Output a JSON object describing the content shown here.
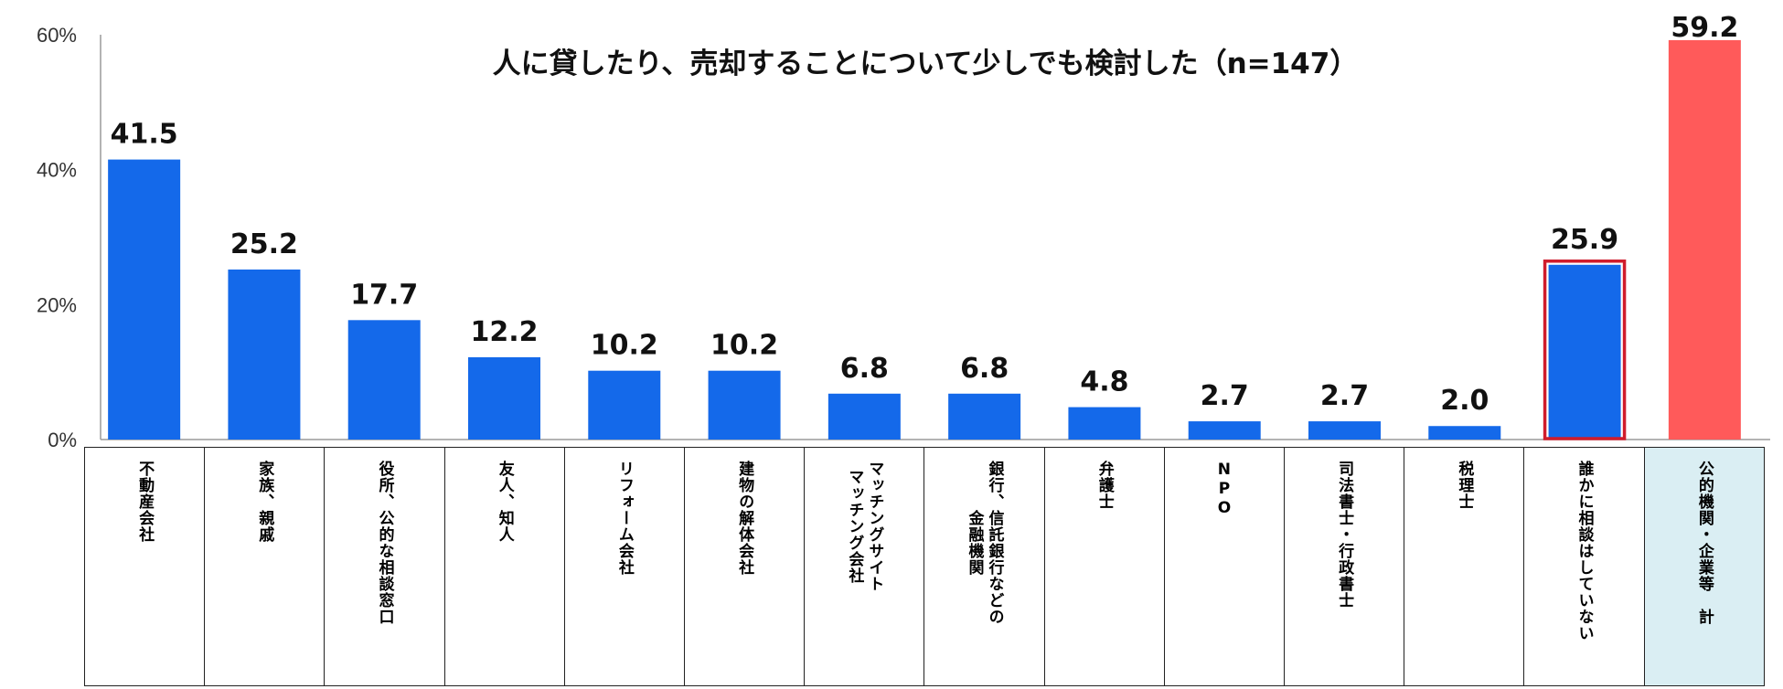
{
  "chart_data": {
    "type": "bar",
    "title": "人に貸したり、売却することについて少しでも検討した（n=147）",
    "y_ticks": [
      "0%",
      "20%",
      "40%",
      "60%"
    ],
    "ylim": [
      0,
      60
    ],
    "grid": false,
    "categories": [
      "不動産会社",
      "家族、親戚",
      "役所、公的な相談窓口",
      "友人、知人",
      "リフォーム会社",
      "建物の解体会社",
      "マッチングサイト\nマッチング会社",
      "銀行、信託銀行などの\n金融機関",
      "弁護士",
      "NPO",
      "司法書士・行政書士",
      "税理士",
      "誰かに相談はしていない",
      "公的機関・企業等　計"
    ],
    "values": [
      41.5,
      25.2,
      17.7,
      12.2,
      10.2,
      10.2,
      6.8,
      6.8,
      4.8,
      2.7,
      2.7,
      2.0,
      25.9,
      59.2
    ],
    "value_labels": [
      "41.5",
      "25.2",
      "17.7",
      "12.2",
      "10.2",
      "10.2",
      "6.8",
      "6.8",
      "4.8",
      "2.7",
      "2.7",
      "2.0",
      "25.9",
      "59.2"
    ],
    "colors": {
      "bar": "#1469ea",
      "total_bar": "#ff5a5a",
      "outline": "#d01c2c",
      "total_cell_bg": "#daeef3"
    },
    "outlined_index": 12,
    "total_index": 13
  }
}
